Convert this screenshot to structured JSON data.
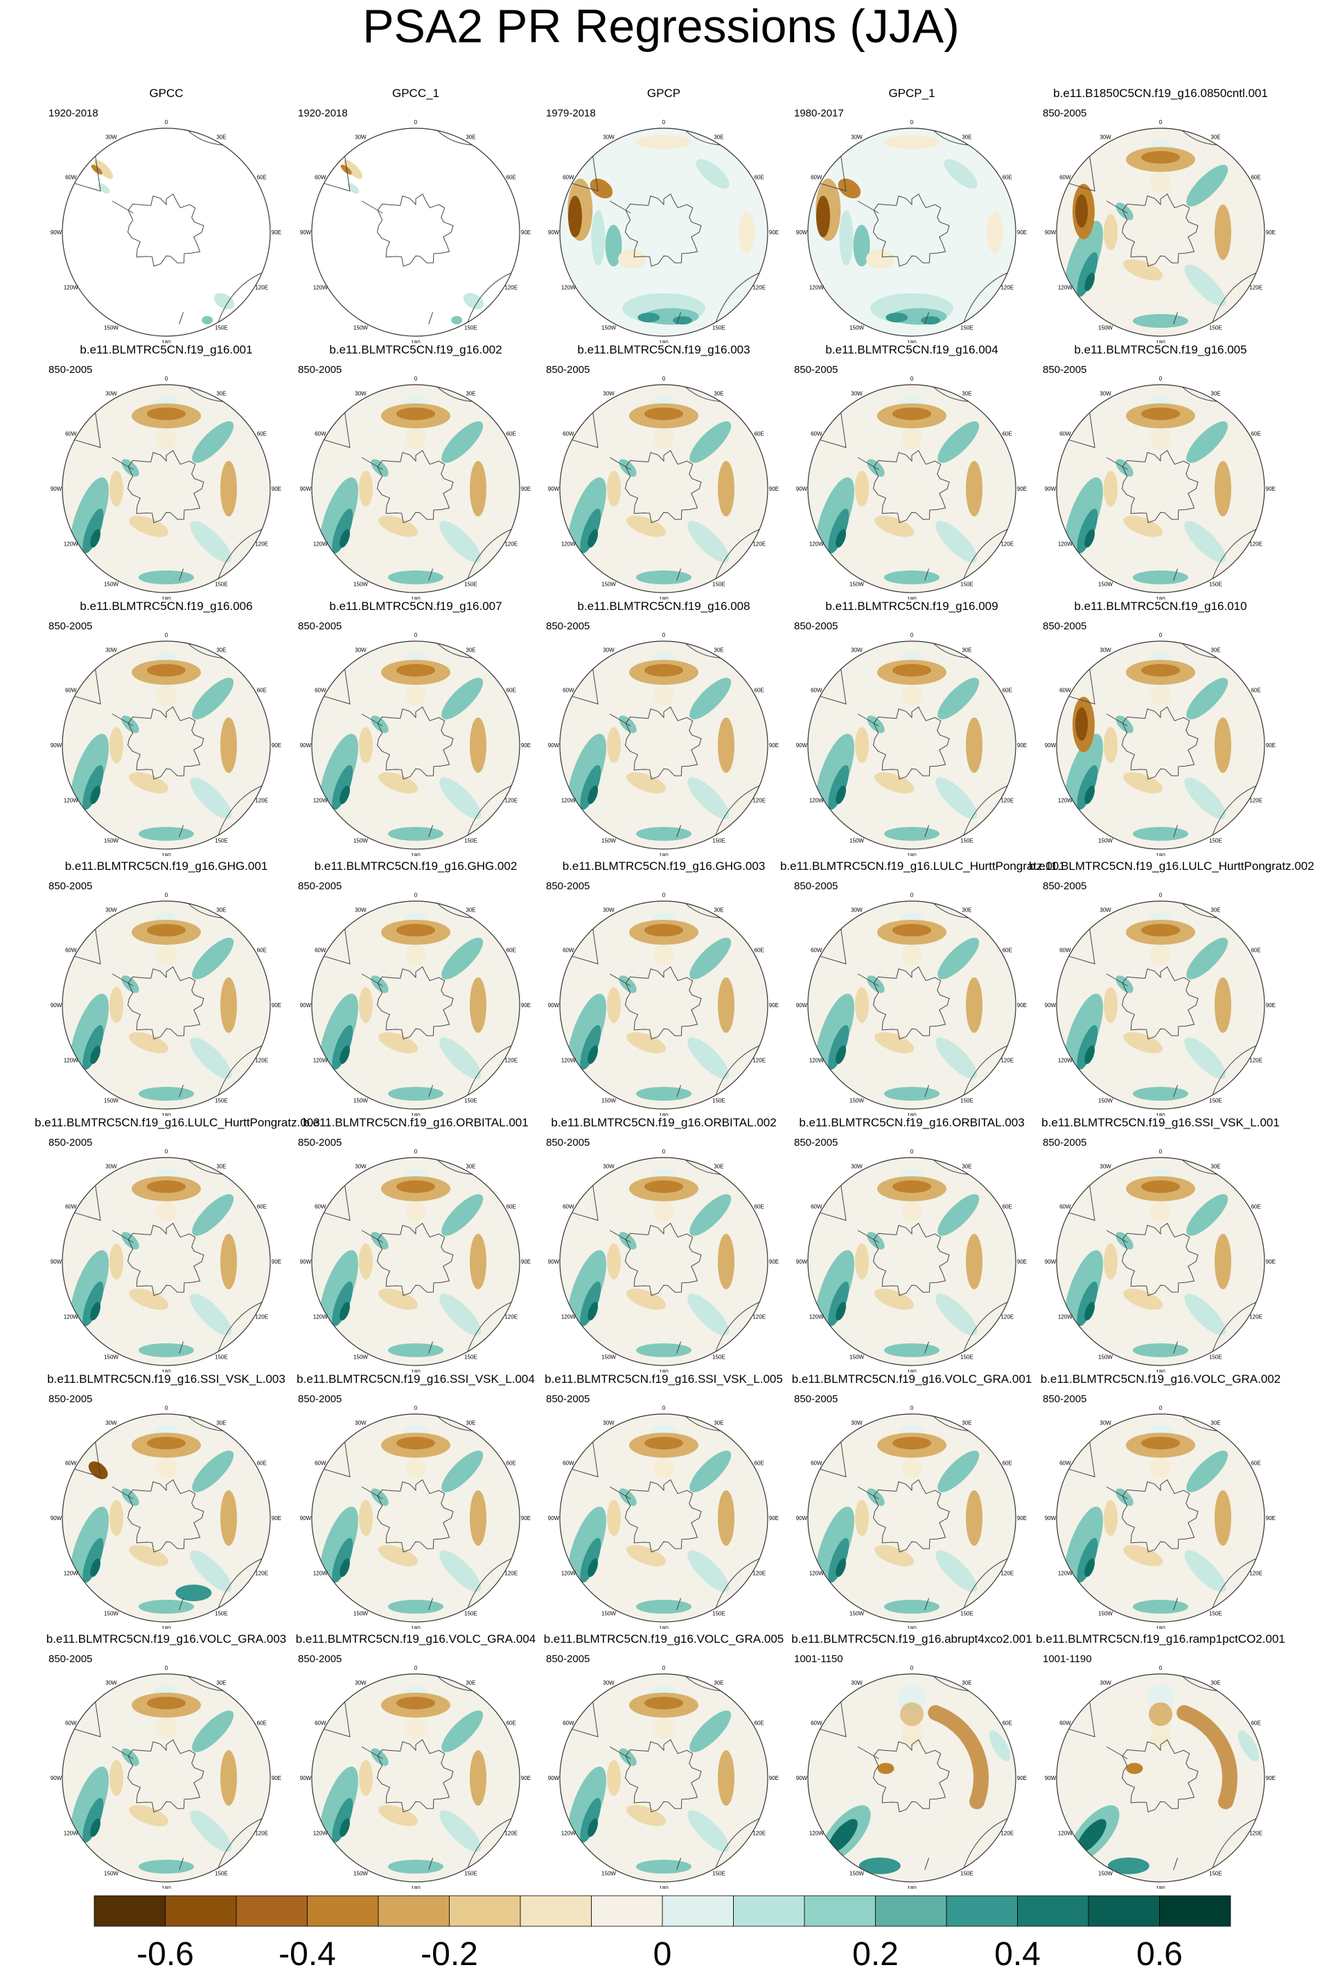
{
  "title": "PSA2 PR Regressions (JJA)",
  "lon_labels": [
    "0",
    "30E",
    "60E",
    "90E",
    "120E",
    "150E",
    "180",
    "150W",
    "120W",
    "90W",
    "60W",
    "30W"
  ],
  "panels": [
    {
      "title": "GPCC",
      "years": "1920-2018",
      "style": "gpcc"
    },
    {
      "title": "GPCC_1",
      "years": "1920-2018",
      "style": "gpcc"
    },
    {
      "title": "GPCP",
      "years": "1979-2018",
      "style": "gpcp"
    },
    {
      "title": "GPCP_1",
      "years": "1980-2017",
      "style": "gpcp"
    },
    {
      "title": "b.e11.B1850C5CN.f19_g16.0850cntl.001",
      "years": "850-2005",
      "style": "brownW"
    },
    {
      "title": "b.e11.BLMTRC5CN.f19_g16.001",
      "years": "850-2005",
      "style": "model"
    },
    {
      "title": "b.e11.BLMTRC5CN.f19_g16.002",
      "years": "850-2005",
      "style": "model"
    },
    {
      "title": "b.e11.BLMTRC5CN.f19_g16.003",
      "years": "850-2005",
      "style": "model"
    },
    {
      "title": "b.e11.BLMTRC5CN.f19_g16.004",
      "years": "850-2005",
      "style": "model"
    },
    {
      "title": "b.e11.BLMTRC5CN.f19_g16.005",
      "years": "850-2005",
      "style": "model"
    },
    {
      "title": "b.e11.BLMTRC5CN.f19_g16.006",
      "years": "850-2005",
      "style": "model"
    },
    {
      "title": "b.e11.BLMTRC5CN.f19_g16.007",
      "years": "850-2005",
      "style": "model"
    },
    {
      "title": "b.e11.BLMTRC5CN.f19_g16.008",
      "years": "850-2005",
      "style": "model"
    },
    {
      "title": "b.e11.BLMTRC5CN.f19_g16.009",
      "years": "850-2005",
      "style": "model"
    },
    {
      "title": "b.e11.BLMTRC5CN.f19_g16.010",
      "years": "850-2005",
      "style": "brownW"
    },
    {
      "title": "b.e11.BLMTRC5CN.f19_g16.GHG.001",
      "years": "850-2005",
      "style": "model"
    },
    {
      "title": "b.e11.BLMTRC5CN.f19_g16.GHG.002",
      "years": "850-2005",
      "style": "model"
    },
    {
      "title": "b.e11.BLMTRC5CN.f19_g16.GHG.003",
      "years": "850-2005",
      "style": "model"
    },
    {
      "title": "b.e11.BLMTRC5CN.f19_g16.LULC_HurttPongratz.001",
      "years": "850-2005",
      "style": "model"
    },
    {
      "title": "b.e11.BLMTRC5CN.f19_g16.LULC_HurttPongratz.002",
      "years": "850-2005",
      "style": "model"
    },
    {
      "title": "b.e11.BLMTRC5CN.f19_g16.LULC_HurttPongratz.003",
      "years": "850-2005",
      "style": "model"
    },
    {
      "title": "b.e11.BLMTRC5CN.f19_g16.ORBITAL.001",
      "years": "850-2005",
      "style": "model"
    },
    {
      "title": "b.e11.BLMTRC5CN.f19_g16.ORBITAL.002",
      "years": "850-2005",
      "style": "model"
    },
    {
      "title": "b.e11.BLMTRC5CN.f19_g16.ORBITAL.003",
      "years": "850-2005",
      "style": "model"
    },
    {
      "title": "b.e11.BLMTRC5CN.f19_g16.SSI_VSK_L.001",
      "years": "850-2005",
      "style": "model"
    },
    {
      "title": "b.e11.BLMTRC5CN.f19_g16.SSI_VSK_L.003",
      "years": "850-2005",
      "style": "mixed"
    },
    {
      "title": "b.e11.BLMTRC5CN.f19_g16.SSI_VSK_L.004",
      "years": "850-2005",
      "style": "model"
    },
    {
      "title": "b.e11.BLMTRC5CN.f19_g16.SSI_VSK_L.005",
      "years": "850-2005",
      "style": "model"
    },
    {
      "title": "b.e11.BLMTRC5CN.f19_g16.VOLC_GRA.001",
      "years": "850-2005",
      "style": "model"
    },
    {
      "title": "b.e11.BLMTRC5CN.f19_g16.VOLC_GRA.002",
      "years": "850-2005",
      "style": "model"
    },
    {
      "title": "b.e11.BLMTRC5CN.f19_g16.VOLC_GRA.003",
      "years": "850-2005",
      "style": "model"
    },
    {
      "title": "b.e11.BLMTRC5CN.f19_g16.VOLC_GRA.004",
      "years": "850-2005",
      "style": "model"
    },
    {
      "title": "b.e11.BLMTRC5CN.f19_g16.VOLC_GRA.005",
      "years": "850-2005",
      "style": "model"
    },
    {
      "title": "b.e11.BLMTRC5CN.f19_g16.abrupt4xco2.001",
      "years": "1001-1150",
      "style": "abrupt"
    },
    {
      "title": "b.e11.BLMTRC5CN.f19_g16.ramp1pctCO2.001",
      "years": "1001-1190",
      "style": "ramp"
    }
  ],
  "colorbar": {
    "colors": [
      "#543005",
      "#8c510a",
      "#a86520",
      "#bf812d",
      "#d3a65b",
      "#e7ca8e",
      "#f3e4c2",
      "#f5f1e6",
      "#e0f0ee",
      "#b9e4dd",
      "#91d2c6",
      "#5fb0a4",
      "#35978f",
      "#1a7a70",
      "#0a5e54",
      "#003c30"
    ],
    "tick_labels": [
      "-0.6",
      "-0.4",
      "-0.2",
      "0",
      "0.2",
      "0.4",
      "0.6"
    ]
  }
}
